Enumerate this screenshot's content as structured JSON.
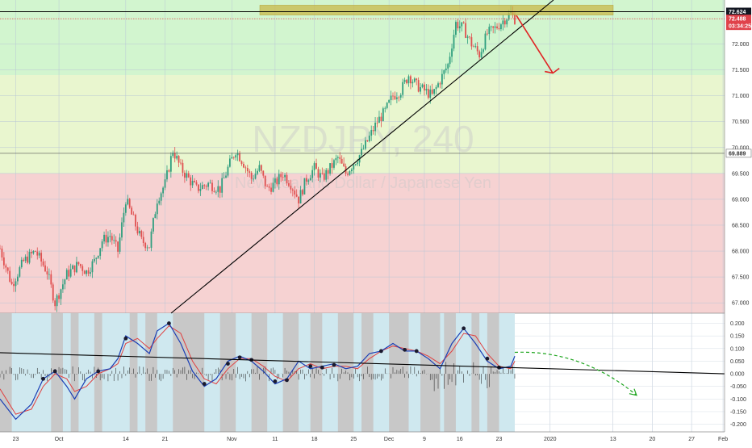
{
  "colors": {
    "upper_green_zone": "#d2f5cf",
    "middle_yellow_zone": "#e9f6cf",
    "lower_red_zone": "#f6d2d2",
    "resistance_box": "#c8b84a",
    "bull_candle": "#2e9e7e",
    "bear_candle": "#e05050",
    "trendline": "#000000",
    "down_arrow": "#e02424",
    "osc_arrow": "#1ea51e",
    "osc_fast": "#1a3fb5",
    "osc_slow": "#e04040",
    "osc_bg_grey": "#c8c8c8",
    "osc_bg_blue": "#cfe8ef",
    "price_badge_black": "#131722",
    "price_badge_red": "#e0424b"
  },
  "chart_data": [
    {
      "type": "candlestick",
      "symbol_watermark": "NZDJPY, 240",
      "description_watermark": "New Zealand Dollar / Japanese Yen",
      "y_ticks": [
        "72.000",
        "71.500",
        "71.000",
        "70.500",
        "70.000",
        "69.500",
        "69.000",
        "68.500",
        "68.000",
        "67.500",
        "67.000"
      ],
      "y_tick_values": [
        72.0,
        71.5,
        71.0,
        70.5,
        70.0,
        69.5,
        69.0,
        68.5,
        68.0,
        67.5,
        67.0
      ],
      "ylim": [
        66.8,
        72.85
      ],
      "x_ticks": [
        "23",
        "Oct",
        "14",
        "21",
        "Nov",
        "11",
        "18",
        "25",
        "Dec",
        "9",
        "16",
        "23",
        "2020",
        "13",
        "20",
        "27",
        "Feb"
      ],
      "price_labels": [
        {
          "text": "72.624",
          "value": 72.624,
          "style": "black"
        },
        {
          "text": "72.488",
          "value": 72.488,
          "style": "red"
        },
        {
          "text": "03:34:25",
          "value": 72.38,
          "style": "red"
        },
        {
          "text": "69.889",
          "value": 69.889,
          "style": "grey"
        }
      ],
      "zones": [
        {
          "name": "upper",
          "from": 71.4,
          "to": 72.85,
          "color": "#d2f5cf"
        },
        {
          "name": "middle",
          "from": 69.5,
          "to": 71.4,
          "color": "#e9f6cf"
        },
        {
          "name": "lower",
          "from": 66.8,
          "to": 69.5,
          "color": "#f6d2d2"
        }
      ],
      "resistance_box": {
        "from": 72.56,
        "to": 72.75
      },
      "key_levels": [
        72.624,
        72.488,
        69.889
      ],
      "price_path": [
        [
          0,
          68.05
        ],
        [
          3,
          67.35
        ],
        [
          6,
          67.8
        ],
        [
          9,
          68.0
        ],
        [
          12,
          67.6
        ],
        [
          14,
          67.0
        ],
        [
          17,
          67.55
        ],
        [
          20,
          67.75
        ],
        [
          22,
          67.6
        ],
        [
          24,
          67.8
        ],
        [
          26,
          68.2
        ],
        [
          28,
          68.3
        ],
        [
          30,
          68.0
        ],
        [
          32,
          69.0
        ],
        [
          34,
          68.6
        ],
        [
          36,
          68.2
        ],
        [
          38,
          68.1
        ],
        [
          40,
          69.0
        ],
        [
          42,
          69.3
        ],
        [
          44,
          69.95
        ],
        [
          46,
          69.6
        ],
        [
          48,
          69.4
        ],
        [
          50,
          69.2
        ],
        [
          53,
          69.3
        ],
        [
          56,
          69.2
        ],
        [
          58,
          69.6
        ],
        [
          60,
          69.95
        ],
        [
          62,
          69.7
        ],
        [
          64,
          69.4
        ],
        [
          66,
          69.6
        ],
        [
          68,
          69.2
        ],
        [
          70,
          69.3
        ],
        [
          72,
          69.5
        ],
        [
          74,
          69.3
        ],
        [
          76,
          69.0
        ],
        [
          78,
          69.4
        ],
        [
          80,
          69.6
        ],
        [
          82,
          69.4
        ],
        [
          84,
          69.6
        ],
        [
          86,
          69.8
        ],
        [
          88,
          69.5
        ],
        [
          90,
          69.7
        ],
        [
          92,
          69.9
        ],
        [
          94,
          70.2
        ],
        [
          96,
          70.5
        ],
        [
          98,
          70.7
        ],
        [
          100,
          71.0
        ],
        [
          102,
          71.1
        ],
        [
          104,
          71.4
        ],
        [
          106,
          71.2
        ],
        [
          108,
          71.1
        ],
        [
          110,
          71.0
        ],
        [
          112,
          71.3
        ],
        [
          114,
          71.6
        ],
        [
          116,
          72.4
        ],
        [
          118,
          72.3
        ],
        [
          120,
          72.0
        ],
        [
          122,
          71.8
        ],
        [
          124,
          72.2
        ],
        [
          126,
          72.3
        ],
        [
          128,
          72.45
        ],
        [
          130,
          72.6
        ],
        [
          131,
          72.488
        ]
      ],
      "series": [
        {
          "name": "trendline",
          "points": [
            [
              2,
              66.9
            ],
            [
              131,
              72.75
            ]
          ]
        },
        {
          "name": "projected drop",
          "points": [
            [
              131,
              72.488
            ],
            [
              137,
              71.5
            ]
          ]
        }
      ]
    },
    {
      "type": "line",
      "panel": "oscillator",
      "y_ticks": [
        "0.200",
        "0.150",
        "0.100",
        "0.050",
        "0.000",
        "-0.050",
        "-0.100",
        "-0.150",
        "-0.200"
      ],
      "y_tick_values": [
        0.2,
        0.15,
        0.1,
        0.05,
        0.0,
        -0.05,
        -0.1,
        -0.15,
        -0.2
      ],
      "ylim": [
        -0.23,
        0.24
      ],
      "fast_line": [
        [
          0,
          -0.1
        ],
        [
          4,
          -0.18
        ],
        [
          8,
          -0.12
        ],
        [
          11,
          -0.02
        ],
        [
          14,
          0.01
        ],
        [
          17,
          -0.05
        ],
        [
          19,
          -0.1
        ],
        [
          22,
          -0.02
        ],
        [
          25,
          0.01
        ],
        [
          28,
          0.02
        ],
        [
          30,
          0.06
        ],
        [
          32,
          0.15
        ],
        [
          35,
          0.12
        ],
        [
          38,
          0.08
        ],
        [
          40,
          0.17
        ],
        [
          43,
          0.2
        ],
        [
          46,
          0.12
        ],
        [
          49,
          0.01
        ],
        [
          52,
          -0.05
        ],
        [
          55,
          -0.02
        ],
        [
          58,
          0.05
        ],
        [
          61,
          0.07
        ],
        [
          64,
          0.05
        ],
        [
          67,
          0.01
        ],
        [
          70,
          -0.04
        ],
        [
          73,
          -0.02
        ],
        [
          76,
          0.05
        ],
        [
          79,
          0.02
        ],
        [
          82,
          0.03
        ],
        [
          85,
          0.04
        ],
        [
          88,
          0.02
        ],
        [
          91,
          0.03
        ],
        [
          94,
          0.08
        ],
        [
          97,
          0.09
        ],
        [
          100,
          0.12
        ],
        [
          103,
          0.09
        ],
        [
          106,
          0.09
        ],
        [
          109,
          0.06
        ],
        [
          112,
          0.02
        ],
        [
          115,
          0.12
        ],
        [
          118,
          0.18
        ],
        [
          121,
          0.12
        ],
        [
          124,
          0.05
        ],
        [
          127,
          0.02
        ],
        [
          130,
          0.03
        ],
        [
          131,
          0.07
        ]
      ],
      "slow_line": [
        [
          0,
          -0.06
        ],
        [
          4,
          -0.16
        ],
        [
          8,
          -0.14
        ],
        [
          11,
          -0.05
        ],
        [
          14,
          0.0
        ],
        [
          17,
          -0.02
        ],
        [
          19,
          -0.07
        ],
        [
          22,
          -0.05
        ],
        [
          25,
          0.0
        ],
        [
          28,
          0.02
        ],
        [
          30,
          0.04
        ],
        [
          32,
          0.12
        ],
        [
          35,
          0.14
        ],
        [
          38,
          0.1
        ],
        [
          40,
          0.14
        ],
        [
          43,
          0.19
        ],
        [
          46,
          0.16
        ],
        [
          49,
          0.05
        ],
        [
          52,
          -0.02
        ],
        [
          55,
          -0.04
        ],
        [
          58,
          0.02
        ],
        [
          61,
          0.06
        ],
        [
          64,
          0.06
        ],
        [
          67,
          0.03
        ],
        [
          70,
          -0.01
        ],
        [
          73,
          -0.03
        ],
        [
          76,
          0.02
        ],
        [
          79,
          0.04
        ],
        [
          82,
          0.02
        ],
        [
          85,
          0.03
        ],
        [
          88,
          0.03
        ],
        [
          91,
          0.02
        ],
        [
          94,
          0.06
        ],
        [
          97,
          0.09
        ],
        [
          100,
          0.11
        ],
        [
          103,
          0.1
        ],
        [
          106,
          0.09
        ],
        [
          109,
          0.07
        ],
        [
          112,
          0.04
        ],
        [
          115,
          0.09
        ],
        [
          118,
          0.16
        ],
        [
          121,
          0.15
        ],
        [
          124,
          0.08
        ],
        [
          127,
          0.03
        ],
        [
          130,
          0.02
        ],
        [
          131,
          0.05
        ]
      ],
      "series": [
        {
          "name": "osc trendline",
          "points": [
            [
              0,
              0.09
            ],
            [
              183,
              0.0
            ]
          ]
        },
        {
          "name": "projected decline",
          "points": [
            [
              131,
              0.085
            ],
            [
              163,
              -0.085
            ]
          ]
        }
      ]
    }
  ]
}
